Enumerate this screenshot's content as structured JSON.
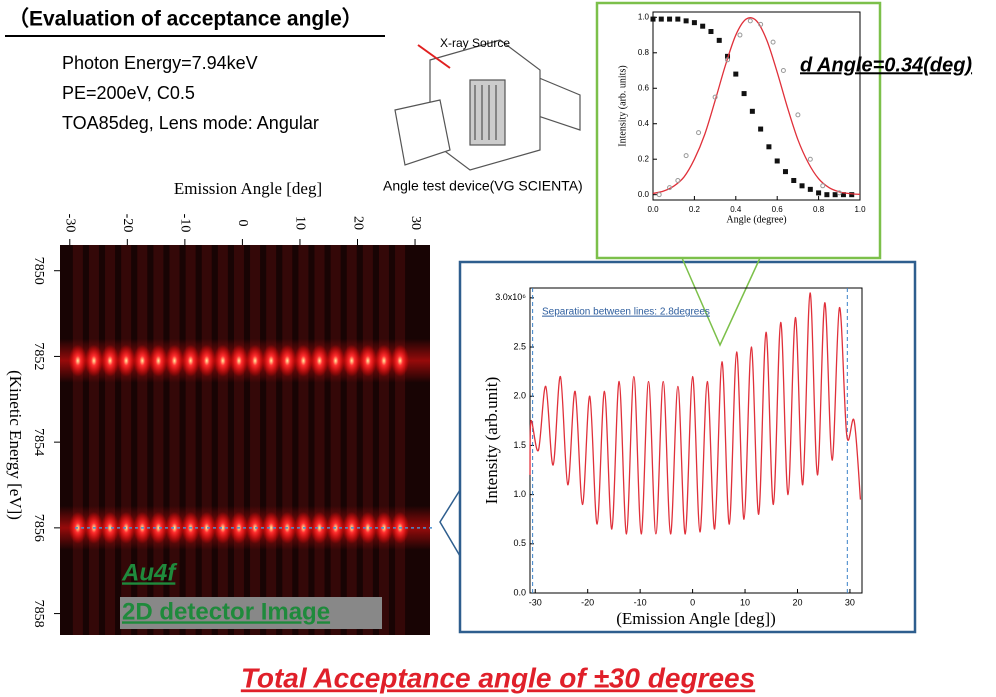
{
  "title": "（Evaluation of acceptance angle）",
  "info": [
    "Photon Energy=7.94keV",
    "PE=200eV, C0.5",
    "TOA85deg, Lens mode: Angular"
  ],
  "device": {
    "source_label": "X-ray Source",
    "caption": "Angle test device(VG SCIENTA)"
  },
  "chart_data": [
    {
      "type": "heatmap",
      "xlabel": "Emission Angle [deg]",
      "ylabel": "(Kinetic Energy [eV])",
      "xlim": [
        -31.7,
        32.6
      ],
      "xticks": [
        -30,
        -20,
        -10,
        0,
        10,
        20,
        30
      ],
      "ylim": [
        7849.4,
        7858.5
      ],
      "yticks": [
        7850,
        7852,
        7854,
        7856,
        7858
      ],
      "bands": [
        7852.1,
        7856.0
      ],
      "peak_angles": [
        -28.6,
        -25.8,
        -23.0,
        -20.2,
        -17.4,
        -14.6,
        -11.8,
        -9.0,
        -6.2,
        -3.4,
        -0.6,
        2.2,
        5.0,
        7.8,
        10.6,
        13.4,
        16.2,
        19.0,
        21.8,
        24.6,
        27.4
      ],
      "labels": [
        "Au4f",
        "2D detector Image"
      ],
      "color": "#ff2a2a"
    },
    {
      "type": "line",
      "xlabel": "(Emission Angle [deg])",
      "ylabel": "Intensity (arb.unit)",
      "annotation": "Separation between lines: 2.8degrees",
      "xlim": [
        -31,
        32.3
      ],
      "xticks": [
        -30,
        -20,
        -10,
        0,
        10,
        20,
        30
      ],
      "ylim": [
        0,
        3.1
      ],
      "yticks": [
        {
          "value": 0,
          "label": "0.0"
        },
        0.5,
        {
          "value": 1,
          "label": "1.0"
        },
        1.5,
        {
          "value": 2,
          "label": "2.0"
        },
        2.5,
        {
          "value": 3,
          "label": "3.0x10⁶"
        }
      ],
      "markers": [
        -30.5,
        29.5
      ],
      "color": "#e0303a",
      "x": [
        -31,
        -30.8,
        -29.4,
        -28,
        -26.6,
        -25.2,
        -23.8,
        -22.4,
        -21,
        -19.6,
        -18.2,
        -16.8,
        -15.4,
        -14,
        -12.6,
        -11.2,
        -9.8,
        -8.4,
        -7,
        -5.6,
        -4.2,
        -2.8,
        -1.4,
        0,
        1.4,
        2.8,
        4.2,
        5.6,
        7,
        8.4,
        9.8,
        11.2,
        12.6,
        14,
        15.4,
        16.8,
        18.2,
        19.6,
        21,
        22.4,
        23.8,
        25.2,
        26.6,
        28,
        29.4,
        30.8,
        32
      ],
      "values": [
        1.2,
        1.75,
        1.45,
        2.1,
        1.3,
        2.2,
        1.1,
        2.05,
        0.9,
        2.0,
        0.7,
        2.05,
        0.65,
        2.15,
        0.6,
        2.2,
        0.6,
        2.15,
        0.6,
        2.15,
        0.6,
        2.1,
        0.6,
        2.2,
        0.62,
        2.15,
        0.65,
        2.35,
        0.7,
        2.45,
        0.75,
        2.5,
        0.8,
        2.65,
        0.9,
        2.75,
        1.0,
        2.8,
        1.1,
        3.05,
        1.2,
        2.95,
        1.35,
        2.9,
        1.6,
        1.75,
        0.95
      ]
    },
    {
      "type": "line",
      "title": "d Angle=0.34(deg)",
      "xlabel": "Angle (degree)",
      "ylabel": "Intensity (arb. units)",
      "xlim": [
        0,
        1
      ],
      "xticks": [
        {
          "value": 0,
          "label": "0.0"
        },
        0.2,
        0.4,
        0.6,
        0.8,
        {
          "value": 1,
          "label": "1.0"
        }
      ],
      "ylim": [
        -0.03,
        1.03
      ],
      "yticks": [
        {
          "value": 0,
          "label": "0.0"
        },
        0.2,
        0.4,
        0.6,
        0.8,
        {
          "value": 1,
          "label": "1.0"
        }
      ],
      "series": [
        {
          "style": "squares",
          "color": "#111111",
          "x": [
            0,
            0.04,
            0.08,
            0.12,
            0.16,
            0.2,
            0.24,
            0.28,
            0.32,
            0.36,
            0.4,
            0.44,
            0.48,
            0.52,
            0.56,
            0.6,
            0.64,
            0.68,
            0.72,
            0.76,
            0.8,
            0.84,
            0.88,
            0.92,
            0.96
          ],
          "values": [
            0.99,
            0.99,
            0.99,
            0.99,
            0.98,
            0.97,
            0.95,
            0.92,
            0.87,
            0.78,
            0.68,
            0.57,
            0.47,
            0.37,
            0.27,
            0.19,
            0.13,
            0.08,
            0.05,
            0.03,
            0.01,
            0,
            0,
            0,
            0
          ]
        },
        {
          "style": "line",
          "color": "#e0303a",
          "x": [
            0,
            0.05,
            0.1,
            0.15,
            0.2,
            0.25,
            0.3,
            0.35,
            0.4,
            0.45,
            0.5,
            0.55,
            0.6,
            0.65,
            0.7,
            0.75,
            0.8,
            0.85,
            0.9,
            0.95,
            1
          ],
          "values": [
            0.007,
            0.02,
            0.048,
            0.1,
            0.2,
            0.34,
            0.53,
            0.73,
            0.9,
            0.99,
            0.98,
            0.87,
            0.69,
            0.49,
            0.31,
            0.18,
            0.09,
            0.04,
            0.016,
            0.006,
            0.002
          ]
        },
        {
          "style": "circles",
          "color": "#999999",
          "x": [
            0.03,
            0.08,
            0.12,
            0.16,
            0.22,
            0.3,
            0.36,
            0.42,
            0.47,
            0.52,
            0.58,
            0.63,
            0.7,
            0.76,
            0.82,
            0.9
          ],
          "values": [
            0.0,
            0.04,
            0.08,
            0.22,
            0.35,
            0.55,
            0.76,
            0.9,
            0.98,
            0.96,
            0.86,
            0.7,
            0.45,
            0.2,
            0.05,
            0.01
          ]
        }
      ]
    }
  ],
  "footer": "Total Acceptance angle of ±30 degrees"
}
